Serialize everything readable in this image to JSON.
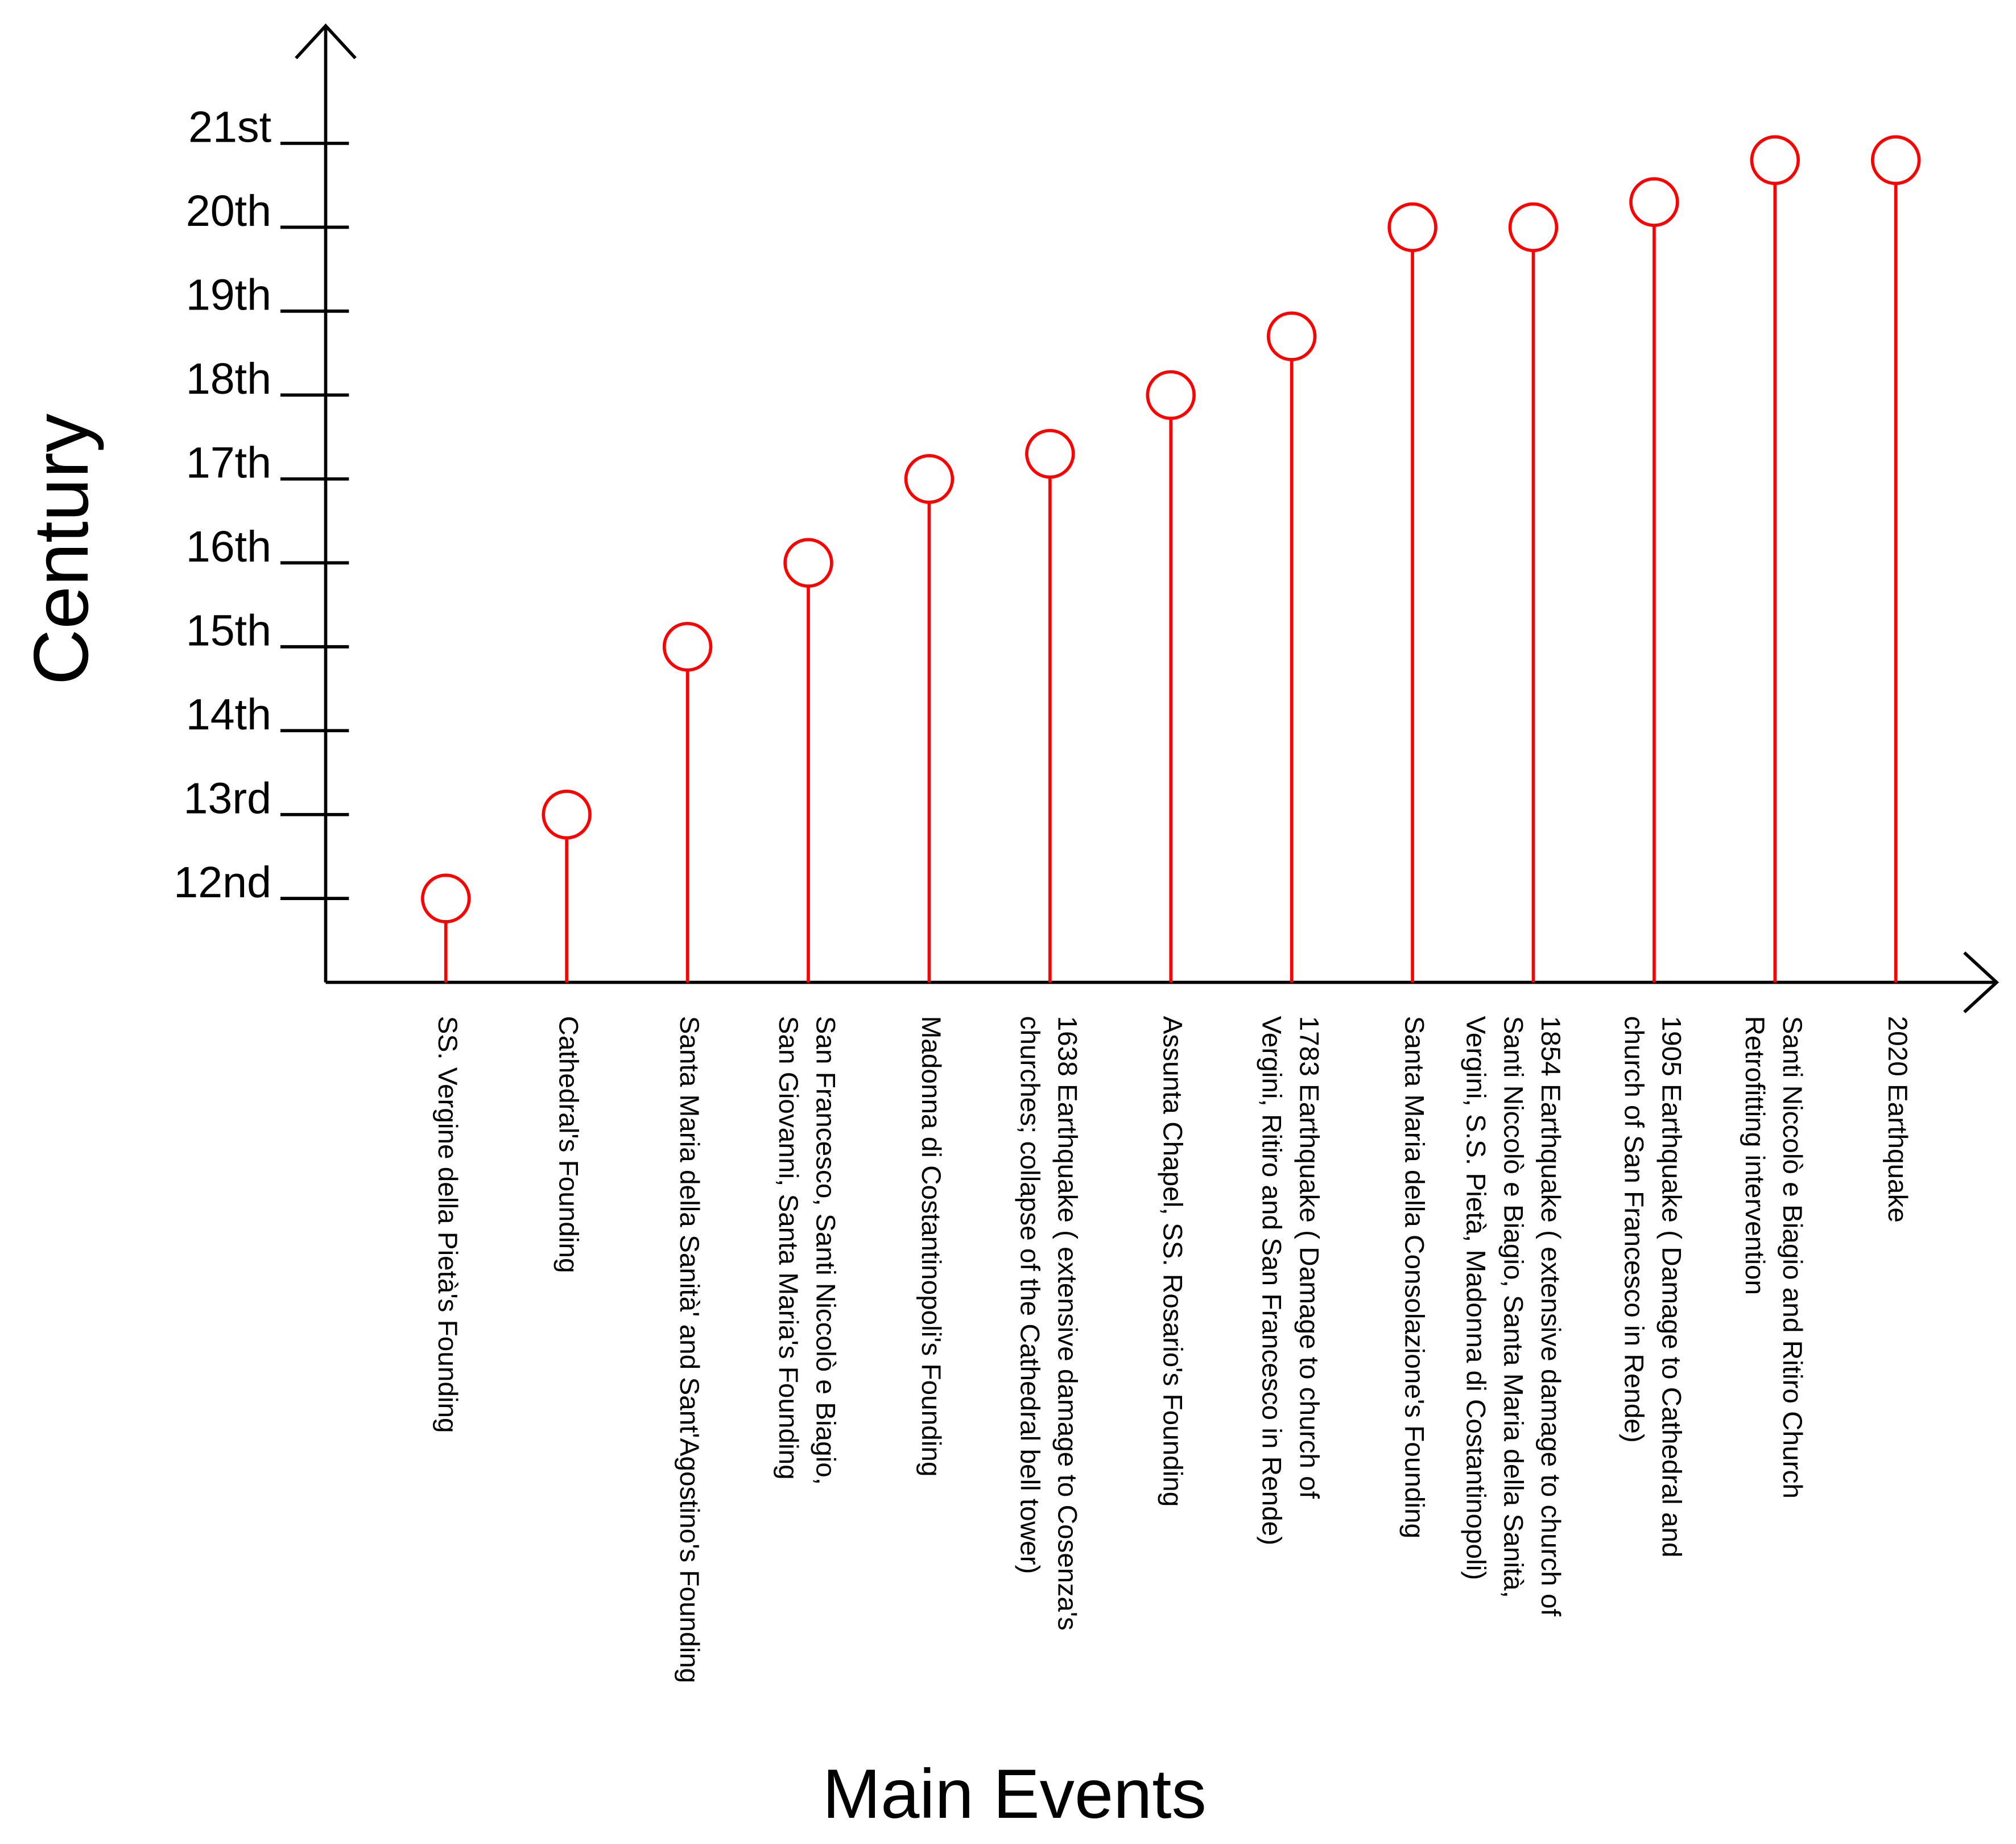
{
  "chart_data": {
    "type": "lollipop",
    "x_label": "Main Events",
    "y_label": "Century",
    "color": "#ff0000",
    "categories": [
      [
        "SS. Vergine della Pietà's  Founding"
      ],
      [
        "Cathedral's Founding"
      ],
      [
        "Santa Maria della Sanità' and Sant'Agostino's Founding"
      ],
      [
        "San Francesco, Santi Niccolò e Biagio,",
        "San Giovanni, Santa Maria's Founding"
      ],
      [
        "Madonna di Costantinopoli's Founding"
      ],
      [
        "1638 Earthquake  ( extensive damage to Cosenza's",
        "churches; collapse of the Cathedral bell tower)"
      ],
      [
        "Assunta Chapel, SS. Rosario's Founding"
      ],
      [
        "1783 Earthquake  ( Damage to church of",
        "Vergini, Ritiro and San Francesco in Rende)"
      ],
      [
        "Santa Maria della Consolazione's Founding"
      ],
      [
        "1854 Earthquake  ( extensive damage to church of",
        "Santi Niccolò e Biagio, Santa Maria della Sanità,",
        "Vergini, S.S. Pietà, Madonna di Costantinopoli)"
      ],
      [
        "1905 Earthquake  ( Damage to Cathedral and",
        "church of San Francesco in Rende)"
      ],
      [
        "Santi Niccolò e Biagio and Ritiro Church",
        "Retrofitting intervention"
      ],
      [
        "2020 Earthquake"
      ]
    ],
    "values": [
      12,
      13,
      15,
      16,
      17,
      17.3,
      18,
      18.7,
      20,
      20,
      20.3,
      20.8,
      20.8
    ],
    "ylim": [
      11,
      22.4
    ],
    "yticks": [
      {
        "value": 12,
        "label": "12nd"
      },
      {
        "value": 13,
        "label": "13rd"
      },
      {
        "value": 14,
        "label": "14th"
      },
      {
        "value": 15,
        "label": "15th"
      },
      {
        "value": 16,
        "label": "16th"
      },
      {
        "value": 17,
        "label": "17th"
      },
      {
        "value": 18,
        "label": "18th"
      },
      {
        "value": 19,
        "label": "19th"
      },
      {
        "value": 20,
        "label": "20th"
      },
      {
        "value": 21,
        "label": "21st"
      }
    ]
  }
}
